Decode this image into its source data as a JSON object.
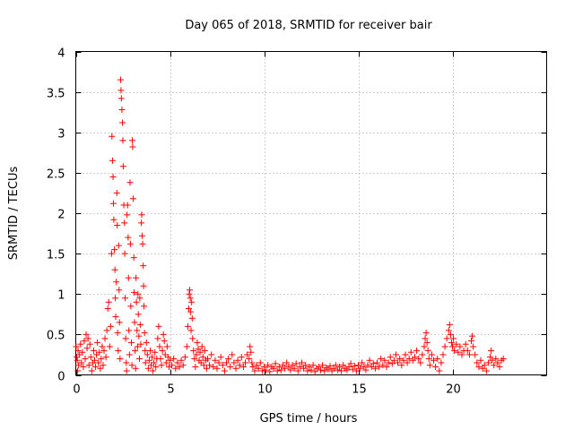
{
  "chart_data": {
    "type": "scatter",
    "title": "Day 065 of 2018, SRMTID for receiver bair",
    "xlabel": "GPS time / hours",
    "ylabel": "SRMTID / TECUs",
    "xlim": [
      0,
      25
    ],
    "ylim": [
      0,
      4
    ],
    "xticks": [
      0,
      5,
      10,
      15,
      20
    ],
    "xtick_labels": [
      "0",
      "5",
      "10",
      "15",
      "20"
    ],
    "yticks": [
      0,
      0.5,
      1,
      1.5,
      2,
      2.5,
      3,
      3.5,
      4
    ],
    "ytick_labels": [
      "0",
      "0.5",
      "1",
      "1.5",
      "2",
      "2.5",
      "3",
      "3.5",
      "4"
    ],
    "grid": true,
    "marker": "+",
    "color": "#ff0000",
    "points": [
      [
        0.02,
        0.35
      ],
      [
        0.05,
        0.22
      ],
      [
        0.08,
        0.18
      ],
      [
        0.1,
        0.05
      ],
      [
        0.12,
        0.3
      ],
      [
        0.15,
        0.12
      ],
      [
        0.2,
        0.25
      ],
      [
        0.25,
        0.38
      ],
      [
        0.3,
        0.15
      ],
      [
        0.35,
        0.28
      ],
      [
        0.4,
        0.1
      ],
      [
        0.45,
        0.42
      ],
      [
        0.5,
        0.2
      ],
      [
        0.55,
        0.5
      ],
      [
        0.6,
        0.33
      ],
      [
        0.65,
        0.45
      ],
      [
        0.7,
        0.12
      ],
      [
        0.75,
        0.38
      ],
      [
        0.8,
        0.22
      ],
      [
        0.85,
        0.05
      ],
      [
        0.9,
        0.15
      ],
      [
        0.95,
        0.3
      ],
      [
        1.0,
        0.18
      ],
      [
        1.05,
        0.1
      ],
      [
        1.1,
        0.25
      ],
      [
        1.15,
        0.4
      ],
      [
        1.2,
        0.15
      ],
      [
        1.25,
        0.28
      ],
      [
        1.3,
        0.08
      ],
      [
        1.35,
        0.2
      ],
      [
        1.4,
        0.35
      ],
      [
        1.45,
        0.12
      ],
      [
        1.5,
        0.3
      ],
      [
        1.55,
        0.45
      ],
      [
        1.6,
        0.22
      ],
      [
        1.65,
        0.55
      ],
      [
        1.7,
        0.82
      ],
      [
        1.75,
        0.9
      ],
      [
        1.8,
        0.35
      ],
      [
        1.85,
        0.6
      ],
      [
        1.9,
        1.5
      ],
      [
        1.92,
        2.95
      ],
      [
        1.95,
        2.65
      ],
      [
        1.98,
        2.45
      ],
      [
        2.0,
        2.12
      ],
      [
        2.02,
        1.92
      ],
      [
        2.05,
        1.55
      ],
      [
        2.08,
        1.3
      ],
      [
        2.1,
        0.95
      ],
      [
        2.12,
        0.72
      ],
      [
        2.15,
        1.15
      ],
      [
        2.18,
        2.25
      ],
      [
        2.2,
        1.85
      ],
      [
        2.22,
        0.52
      ],
      [
        2.25,
        0.3
      ],
      [
        2.28,
        1.6
      ],
      [
        2.3,
        1.05
      ],
      [
        2.32,
        0.65
      ],
      [
        2.35,
        0.2
      ],
      [
        2.38,
        3.65
      ],
      [
        2.4,
        3.52
      ],
      [
        2.42,
        3.42
      ],
      [
        2.45,
        3.28
      ],
      [
        2.48,
        3.12
      ],
      [
        2.5,
        2.9
      ],
      [
        2.52,
        2.58
      ],
      [
        2.55,
        2.1
      ],
      [
        2.58,
        1.88
      ],
      [
        2.6,
        1.5
      ],
      [
        2.62,
        0.95
      ],
      [
        2.65,
        0.45
      ],
      [
        2.68,
        0.15
      ],
      [
        2.7,
        0.05
      ],
      [
        2.72,
        1.98
      ],
      [
        2.75,
        2.1
      ],
      [
        2.78,
        1.7
      ],
      [
        2.8,
        1.2
      ],
      [
        2.82,
        0.55
      ],
      [
        2.85,
        0.25
      ],
      [
        2.88,
        2.38
      ],
      [
        2.9,
        1.62
      ],
      [
        2.92,
        0.85
      ],
      [
        2.95,
        0.4
      ],
      [
        2.98,
        0.12
      ],
      [
        3.0,
        2.9
      ],
      [
        3.02,
        2.82
      ],
      [
        3.05,
        2.18
      ],
      [
        3.08,
        1.45
      ],
      [
        3.1,
        1.02
      ],
      [
        3.12,
        0.65
      ],
      [
        3.15,
        0.3
      ],
      [
        3.18,
        0.08
      ],
      [
        3.2,
        1.2
      ],
      [
        3.22,
        0.9
      ],
      [
        3.25,
        0.55
      ],
      [
        3.28,
        0.35
      ],
      [
        3.3,
        1.0
      ],
      [
        3.32,
        0.75
      ],
      [
        3.35,
        0.48
      ],
      [
        3.38,
        0.2
      ],
      [
        3.4,
        0.95
      ],
      [
        3.42,
        0.62
      ],
      [
        3.45,
        0.38
      ],
      [
        3.48,
        1.88
      ],
      [
        3.5,
        1.98
      ],
      [
        3.52,
        1.72
      ],
      [
        3.55,
        1.62
      ],
      [
        3.58,
        1.35
      ],
      [
        3.6,
        1.1
      ],
      [
        3.62,
        0.85
      ],
      [
        3.65,
        0.52
      ],
      [
        3.68,
        0.3
      ],
      [
        3.7,
        0.15
      ],
      [
        3.75,
        0.4
      ],
      [
        3.8,
        0.25
      ],
      [
        3.85,
        0.08
      ],
      [
        3.9,
        0.18
      ],
      [
        3.95,
        0.3
      ],
      [
        4.0,
        0.12
      ],
      [
        4.05,
        0.22
      ],
      [
        4.1,
        0.05
      ],
      [
        4.15,
        0.15
      ],
      [
        4.2,
        0.28
      ],
      [
        4.25,
        0.1
      ],
      [
        4.3,
        0.2
      ],
      [
        4.35,
        0.45
      ],
      [
        4.4,
        0.6
      ],
      [
        4.45,
        0.35
      ],
      [
        4.5,
        0.2
      ],
      [
        4.55,
        0.12
      ],
      [
        4.6,
        0.3
      ],
      [
        4.65,
        0.5
      ],
      [
        4.7,
        0.42
      ],
      [
        4.75,
        0.25
      ],
      [
        4.8,
        0.15
      ],
      [
        4.85,
        0.35
      ],
      [
        4.9,
        0.22
      ],
      [
        4.95,
        0.1
      ],
      [
        5.0,
        0.18
      ],
      [
        5.1,
        0.12
      ],
      [
        5.2,
        0.2
      ],
      [
        5.3,
        0.08
      ],
      [
        5.4,
        0.15
      ],
      [
        5.5,
        0.1
      ],
      [
        5.6,
        0.18
      ],
      [
        5.7,
        0.12
      ],
      [
        5.8,
        0.22
      ],
      [
        5.9,
        0.35
      ],
      [
        5.95,
        0.6
      ],
      [
        6.0,
        0.82
      ],
      [
        6.02,
        1.0
      ],
      [
        6.05,
        1.05
      ],
      [
        6.08,
        0.95
      ],
      [
        6.1,
        0.78
      ],
      [
        6.12,
        0.55
      ],
      [
        6.15,
        0.9
      ],
      [
        6.18,
        0.7
      ],
      [
        6.2,
        0.45
      ],
      [
        6.25,
        0.3
      ],
      [
        6.3,
        0.2
      ],
      [
        6.35,
        0.1
      ],
      [
        6.4,
        0.25
      ],
      [
        6.45,
        0.4
      ],
      [
        6.5,
        0.32
      ],
      [
        6.55,
        0.18
      ],
      [
        6.6,
        0.28
      ],
      [
        6.65,
        0.15
      ],
      [
        6.7,
        0.35
      ],
      [
        6.75,
        0.22
      ],
      [
        6.8,
        0.12
      ],
      [
        6.85,
        0.3
      ],
      [
        6.9,
        0.18
      ],
      [
        6.95,
        0.08
      ],
      [
        7.0,
        0.2
      ],
      [
        7.1,
        0.12
      ],
      [
        7.2,
        0.25
      ],
      [
        7.3,
        0.1
      ],
      [
        7.4,
        0.18
      ],
      [
        7.5,
        0.08
      ],
      [
        7.6,
        0.15
      ],
      [
        7.7,
        0.22
      ],
      [
        7.8,
        0.12
      ],
      [
        7.9,
        0.05
      ],
      [
        8.0,
        0.15
      ],
      [
        8.1,
        0.2
      ],
      [
        8.2,
        0.1
      ],
      [
        8.3,
        0.25
      ],
      [
        8.4,
        0.15
      ],
      [
        8.5,
        0.08
      ],
      [
        8.6,
        0.18
      ],
      [
        8.7,
        0.12
      ],
      [
        8.8,
        0.22
      ],
      [
        8.9,
        0.1
      ],
      [
        9.0,
        0.15
      ],
      [
        9.1,
        0.25
      ],
      [
        9.2,
        0.2
      ],
      [
        9.25,
        0.35
      ],
      [
        9.3,
        0.28
      ],
      [
        9.35,
        0.15
      ],
      [
        9.4,
        0.1
      ],
      [
        9.5,
        0.05
      ],
      [
        9.6,
        0.12
      ],
      [
        9.7,
        0.08
      ],
      [
        9.8,
        0.15
      ],
      [
        9.9,
        0.05
      ],
      [
        10.0,
        0.1
      ],
      [
        10.1,
        0.06
      ],
      [
        10.2,
        0.12
      ],
      [
        10.3,
        0.04
      ],
      [
        10.4,
        0.1
      ],
      [
        10.5,
        0.08
      ],
      [
        10.6,
        0.14
      ],
      [
        10.7,
        0.05
      ],
      [
        10.8,
        0.1
      ],
      [
        10.9,
        0.06
      ],
      [
        11.0,
        0.12
      ],
      [
        11.1,
        0.08
      ],
      [
        11.2,
        0.15
      ],
      [
        11.3,
        0.1
      ],
      [
        11.4,
        0.06
      ],
      [
        11.5,
        0.12
      ],
      [
        11.6,
        0.08
      ],
      [
        11.7,
        0.14
      ],
      [
        11.8,
        0.05
      ],
      [
        11.9,
        0.1
      ],
      [
        12.0,
        0.15
      ],
      [
        12.1,
        0.08
      ],
      [
        12.2,
        0.12
      ],
      [
        12.3,
        0.05
      ],
      [
        12.4,
        0.1
      ],
      [
        12.5,
        0.06
      ],
      [
        12.6,
        0.12
      ],
      [
        12.7,
        0.04
      ],
      [
        12.8,
        0.08
      ],
      [
        12.9,
        0.1
      ],
      [
        13.0,
        0.06
      ],
      [
        13.1,
        0.12
      ],
      [
        13.2,
        0.05
      ],
      [
        13.3,
        0.09
      ],
      [
        13.4,
        0.07
      ],
      [
        13.5,
        0.11
      ],
      [
        13.6,
        0.05
      ],
      [
        13.7,
        0.08
      ],
      [
        13.8,
        0.12
      ],
      [
        13.9,
        0.06
      ],
      [
        14.0,
        0.1
      ],
      [
        14.1,
        0.05
      ],
      [
        14.2,
        0.12
      ],
      [
        14.3,
        0.08
      ],
      [
        14.4,
        0.06
      ],
      [
        14.5,
        0.1
      ],
      [
        14.6,
        0.14
      ],
      [
        14.7,
        0.07
      ],
      [
        14.8,
        0.11
      ],
      [
        14.9,
        0.05
      ],
      [
        15.0,
        0.12
      ],
      [
        15.1,
        0.08
      ],
      [
        15.2,
        0.15
      ],
      [
        15.3,
        0.1
      ],
      [
        15.4,
        0.06
      ],
      [
        15.5,
        0.12
      ],
      [
        15.6,
        0.18
      ],
      [
        15.7,
        0.1
      ],
      [
        15.8,
        0.14
      ],
      [
        15.9,
        0.08
      ],
      [
        16.0,
        0.15
      ],
      [
        16.1,
        0.1
      ],
      [
        16.2,
        0.2
      ],
      [
        16.3,
        0.12
      ],
      [
        16.4,
        0.18
      ],
      [
        16.5,
        0.1
      ],
      [
        16.6,
        0.15
      ],
      [
        16.7,
        0.22
      ],
      [
        16.8,
        0.14
      ],
      [
        16.9,
        0.18
      ],
      [
        17.0,
        0.25
      ],
      [
        17.1,
        0.15
      ],
      [
        17.2,
        0.2
      ],
      [
        17.3,
        0.12
      ],
      [
        17.4,
        0.18
      ],
      [
        17.5,
        0.25
      ],
      [
        17.6,
        0.15
      ],
      [
        17.7,
        0.2
      ],
      [
        17.8,
        0.28
      ],
      [
        17.9,
        0.18
      ],
      [
        18.0,
        0.22
      ],
      [
        18.1,
        0.3
      ],
      [
        18.2,
        0.2
      ],
      [
        18.3,
        0.15
      ],
      [
        18.4,
        0.25
      ],
      [
        18.5,
        0.35
      ],
      [
        18.55,
        0.45
      ],
      [
        18.6,
        0.52
      ],
      [
        18.65,
        0.4
      ],
      [
        18.7,
        0.3
      ],
      [
        18.75,
        0.2
      ],
      [
        18.8,
        0.12
      ],
      [
        18.9,
        0.25
      ],
      [
        19.0,
        0.18
      ],
      [
        19.1,
        0.1
      ],
      [
        19.2,
        0.2
      ],
      [
        19.3,
        0.05
      ],
      [
        19.4,
        0.15
      ],
      [
        19.5,
        0.25
      ],
      [
        19.6,
        0.35
      ],
      [
        19.7,
        0.45
      ],
      [
        19.8,
        0.55
      ],
      [
        19.85,
        0.62
      ],
      [
        19.9,
        0.5
      ],
      [
        19.95,
        0.4
      ],
      [
        20.0,
        0.35
      ],
      [
        20.05,
        0.45
      ],
      [
        20.1,
        0.3
      ],
      [
        20.2,
        0.38
      ],
      [
        20.3,
        0.28
      ],
      [
        20.4,
        0.35
      ],
      [
        20.5,
        0.25
      ],
      [
        20.6,
        0.3
      ],
      [
        20.7,
        0.38
      ],
      [
        20.8,
        0.3
      ],
      [
        20.9,
        0.25
      ],
      [
        21.0,
        0.42
      ],
      [
        21.05,
        0.48
      ],
      [
        21.1,
        0.35
      ],
      [
        21.2,
        0.25
      ],
      [
        21.3,
        0.15
      ],
      [
        21.4,
        0.1
      ],
      [
        21.5,
        0.18
      ],
      [
        21.6,
        0.08
      ],
      [
        21.7,
        0.12
      ],
      [
        21.8,
        0.05
      ],
      [
        21.9,
        0.15
      ],
      [
        22.0,
        0.22
      ],
      [
        22.05,
        0.3
      ],
      [
        22.1,
        0.18
      ],
      [
        22.2,
        0.12
      ],
      [
        22.3,
        0.2
      ],
      [
        22.4,
        0.15
      ],
      [
        22.5,
        0.1
      ],
      [
        22.6,
        0.18
      ],
      [
        22.7,
        0.2
      ]
    ]
  }
}
